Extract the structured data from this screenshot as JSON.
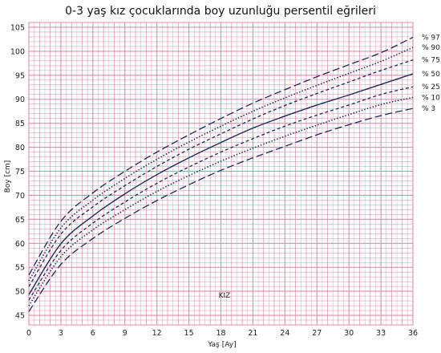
{
  "chart_data": {
    "type": "line",
    "title": "0-3 yaş kız çocuklarında boy uzunluğu persentil eğrileri",
    "xlabel": "Yaş [Ay]",
    "ylabel": "Boy [cm]",
    "xlim": [
      0,
      36
    ],
    "ylim": [
      43,
      106
    ],
    "x_ticks": [
      0,
      3,
      6,
      9,
      12,
      15,
      18,
      21,
      24,
      27,
      30,
      33,
      36
    ],
    "y_ticks": [
      45,
      50,
      55,
      60,
      65,
      70,
      75,
      80,
      85,
      90,
      95,
      100,
      105
    ],
    "grid": true,
    "annotation": "KIZ",
    "colors": {
      "grid": "#e58aa8",
      "line": "#1a2a5c",
      "background": "#ffffff"
    },
    "x": [
      0,
      3,
      6,
      9,
      12,
      15,
      18,
      21,
      24,
      27,
      30,
      33,
      36
    ],
    "series": [
      {
        "name": "% 97",
        "dash": "long-dash",
        "values": [
          53.4,
          64.6,
          70.5,
          75.0,
          79.0,
          82.6,
          86.0,
          89.2,
          92.0,
          94.7,
          97.2,
          99.7,
          102.9
        ]
      },
      {
        "name": "% 90",
        "dash": "dotted",
        "values": [
          52.2,
          63.2,
          69.0,
          73.5,
          77.5,
          81.1,
          84.4,
          87.5,
          90.3,
          92.9,
          95.4,
          97.9,
          100.8
        ]
      },
      {
        "name": "% 75",
        "dash": "short-dash",
        "values": [
          51.0,
          61.9,
          67.6,
          72.0,
          76.0,
          79.6,
          82.8,
          85.9,
          88.7,
          91.2,
          93.6,
          96.0,
          98.2
        ]
      },
      {
        "name": "% 50",
        "dash": "solid",
        "values": [
          49.3,
          59.9,
          65.7,
          70.3,
          74.3,
          77.8,
          81.0,
          84.0,
          86.5,
          88.8,
          90.9,
          93.1,
          95.3
        ]
      },
      {
        "name": "% 25",
        "dash": "short-dash",
        "values": [
          48.2,
          58.5,
          64.2,
          68.6,
          72.5,
          75.9,
          79.0,
          81.8,
          84.4,
          86.7,
          88.8,
          91.0,
          92.6
        ]
      },
      {
        "name": "% 10",
        "dash": "dotted",
        "values": [
          47.0,
          57.2,
          62.8,
          67.0,
          70.8,
          74.1,
          77.1,
          79.8,
          82.3,
          84.6,
          86.8,
          88.9,
          90.4
        ]
      },
      {
        "name": "% 3",
        "dash": "long-dash",
        "values": [
          45.8,
          55.6,
          61.0,
          65.2,
          68.9,
          72.2,
          75.2,
          77.8,
          80.2,
          82.6,
          84.7,
          86.6,
          88.1
        ]
      }
    ]
  }
}
